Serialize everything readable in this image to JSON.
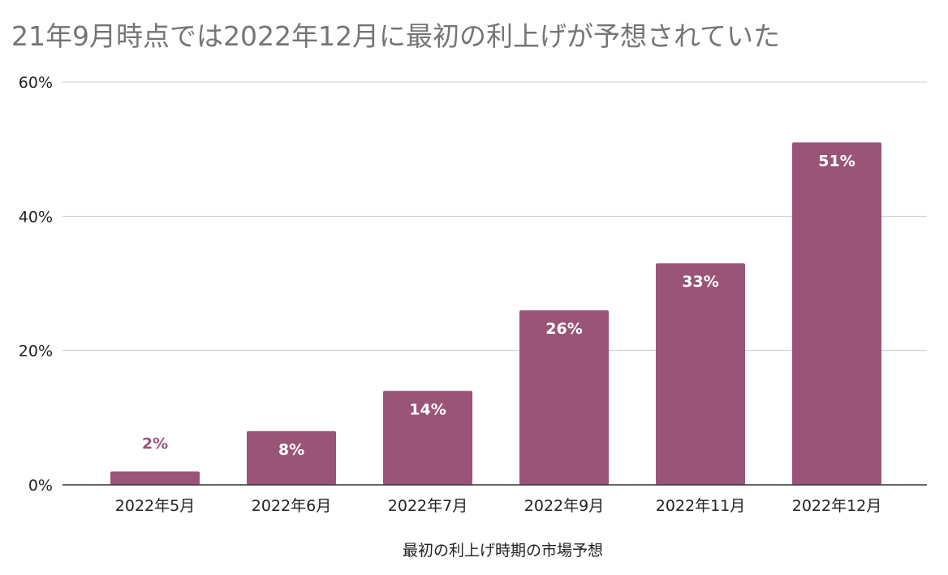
{
  "chart_data": {
    "type": "bar",
    "title": "21年9月時点では2022年12月に最初の利上げが予想されていた",
    "xlabel": "最初の利上げ時期の市場予想",
    "ylabel": "",
    "categories": [
      "2022年5月",
      "2022年6月",
      "2022年7月",
      "2022年9月",
      "2022年11月",
      "2022年12月"
    ],
    "values": [
      2,
      8,
      14,
      26,
      33,
      51
    ],
    "value_labels": [
      "2%",
      "8%",
      "14%",
      "26%",
      "33%",
      "51%"
    ],
    "ylim": [
      0,
      60
    ],
    "yticks": [
      0,
      20,
      40,
      60
    ],
    "ytick_labels": [
      "0%",
      "20%",
      "40%",
      "60%"
    ],
    "grid": true,
    "legend": "none",
    "colors": {
      "bar": "#9a5478",
      "label_inside": "#ffffff",
      "label_outside": "#9a5478",
      "grid": "#cccccc",
      "axis": "#333333",
      "title": "#757575"
    }
  }
}
